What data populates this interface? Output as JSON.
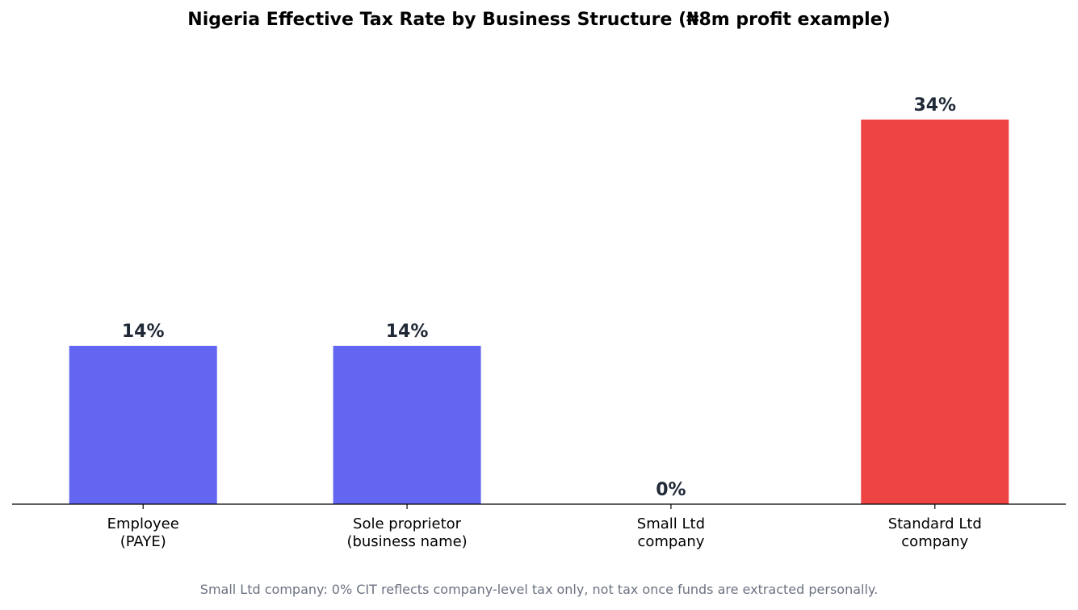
{
  "chart_data": {
    "type": "bar",
    "title": "Nigeria Effective Tax Rate by Business Structure (₦8m profit example)",
    "xlabel": "",
    "ylabel": "",
    "categories": [
      [
        "Employee",
        "(PAYE)"
      ],
      [
        "Sole proprietor",
        "(business name)"
      ],
      [
        "Small Ltd",
        "company"
      ],
      [
        "Standard Ltd",
        "company"
      ]
    ],
    "values": [
      14,
      14,
      0,
      34
    ],
    "data_labels": [
      "14%",
      "14%",
      "0%",
      "34%"
    ],
    "colors": [
      "#6366f1",
      "#6366f1",
      "#6366f1",
      "#ef4444"
    ],
    "ylim": [
      0,
      40
    ],
    "grid": false,
    "legend": "none"
  },
  "footnote": "Small Ltd company: 0% CIT reflects company-level tax only, not tax once funds are extracted personally."
}
